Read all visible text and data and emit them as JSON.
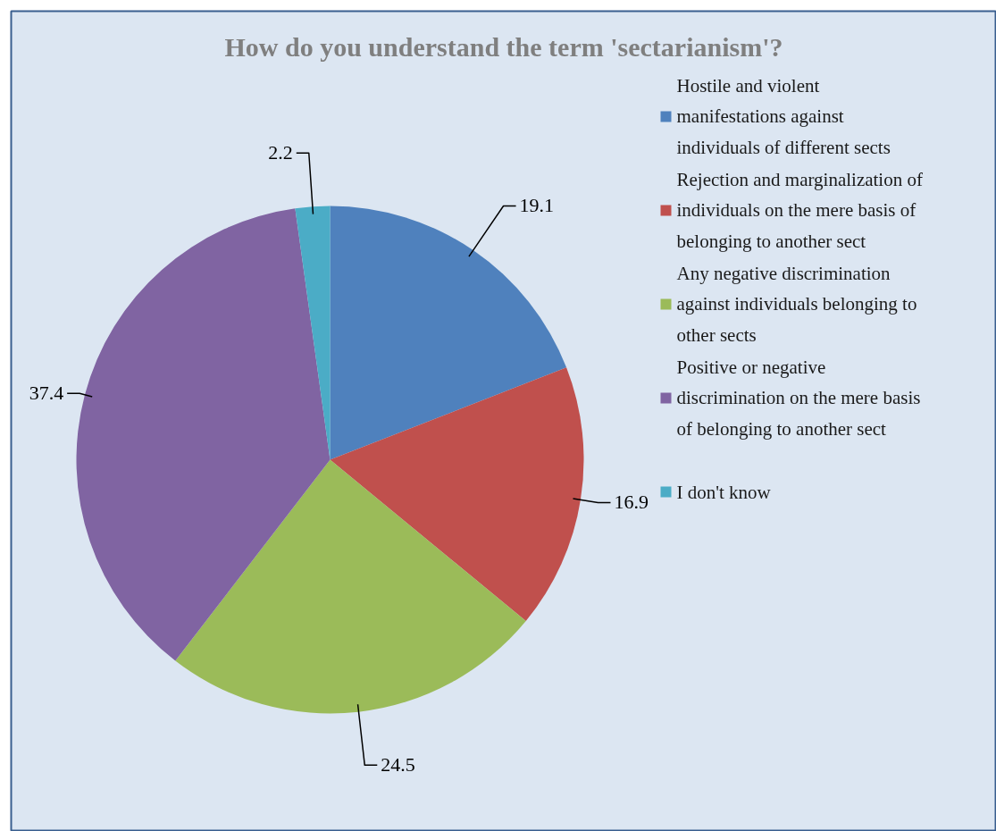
{
  "chart_data": {
    "type": "pie",
    "title": "How do you understand the term 'sectarianism'?",
    "categories": [
      "Hostile and violent manifestations against individuals of different sects",
      "Rejection and marginalization of individuals on the mere basis of belonging to another sect",
      "Any negative discrimination against individuals belonging to other sects",
      "Positive or negative discrimination on the mere basis of belonging to another sect",
      "I don't know"
    ],
    "values": [
      19.1,
      16.9,
      24.5,
      37.4,
      2.2
    ],
    "colors": [
      "#4f81bd",
      "#c0504d",
      "#9bbb59",
      "#8064a2",
      "#4bacc6"
    ],
    "data_labels": true,
    "legend": "right"
  }
}
